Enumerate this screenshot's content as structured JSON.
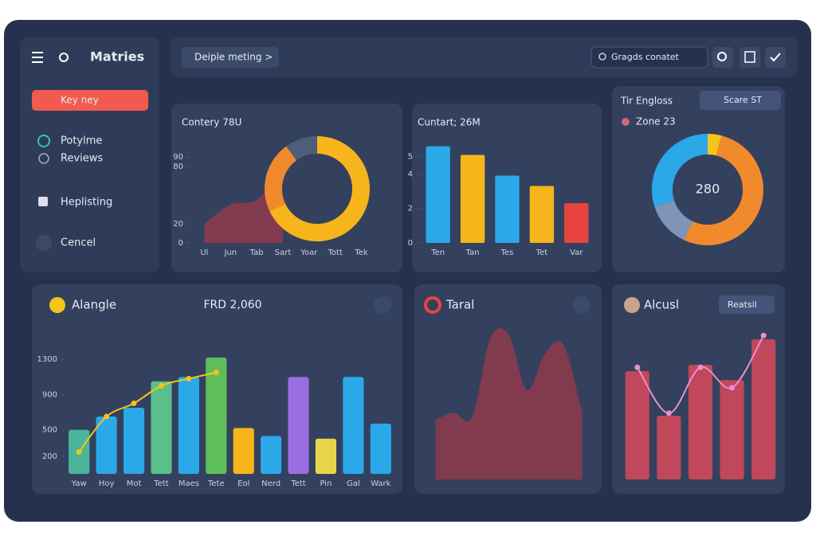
{
  "sidebar": {
    "title": "Matries",
    "button": "Key ney",
    "items": [
      "Potylme",
      "Reviews",
      "Heplisting",
      "Cencel"
    ]
  },
  "topbar": {
    "breadcrumb": "Deiple meting >",
    "search": "Gragds conatet"
  },
  "chart_data": [
    {
      "type": "area",
      "title": "Contery 78U",
      "categories": [
        "Ul",
        "Jun",
        "Tab",
        "Sart",
        "Yoar",
        "Tott",
        "Tek"
      ],
      "values": [
        20,
        40,
        45,
        75,
        null,
        null,
        null
      ],
      "color": "#8b3a4e",
      "ylim": [
        0,
        100
      ],
      "yticks": [
        0,
        20,
        80,
        90
      ]
    },
    {
      "type": "donut",
      "values": [
        68,
        22,
        10
      ],
      "colors": [
        "#f5b51b",
        "#f08a2c",
        "#4d5d7a"
      ]
    },
    {
      "type": "bar",
      "title": "Cuntart; 26M",
      "categories": [
        "Ten",
        "Tan",
        "Tes",
        "Tet",
        "Var"
      ],
      "values": [
        5.6,
        5.1,
        3.9,
        3.3,
        2.3
      ],
      "colors": [
        "#2ba8e8",
        "#f5b51b",
        "#2ba8e8",
        "#f5b51b",
        "#e8443f"
      ],
      "ylim": [
        0,
        6
      ],
      "yticks": [
        0,
        2,
        4,
        5
      ]
    },
    {
      "type": "donut",
      "title": "Tir Engloss",
      "button": "Scare ST",
      "legend": "Zone 23",
      "center_label": "280",
      "values": [
        4,
        53,
        13,
        30
      ],
      "colors": [
        "#f5c518",
        "#f08a2c",
        "#8094b8",
        "#2ba8e8"
      ]
    },
    {
      "type": "combo",
      "title": "Alangle",
      "subtitle": "FRD 2,060",
      "categories": [
        "Yaw",
        "Hoy",
        "Mot",
        "Tett",
        "Maes",
        "Tete",
        "Eol",
        "Nerd",
        "Tett",
        "Pin",
        "Gal",
        "Wark"
      ],
      "series": [
        {
          "type": "bar",
          "values": [
            500,
            650,
            750,
            1050,
            1100,
            1320,
            520,
            430,
            1100,
            400,
            1100,
            570
          ],
          "colors": [
            "#4ab59a",
            "#2ba8e8",
            "#2ba8e8",
            "#5bbf8a",
            "#2ba8e8",
            "#5fbf5a",
            "#f5b51b",
            "#2ba8e8",
            "#9b6ee0",
            "#e8d54a",
            "#2ba8e8",
            "#2ba8e8"
          ]
        },
        {
          "type": "line",
          "color": "#f5c518",
          "values": [
            250,
            650,
            800,
            1000,
            1080,
            1150,
            null,
            null,
            null,
            null,
            null,
            null
          ]
        }
      ],
      "ylim": [
        0,
        1400
      ],
      "yticks": [
        200,
        500,
        900,
        1300
      ]
    },
    {
      "type": "area",
      "title": "Taral",
      "values": [
        40,
        45,
        42,
        95,
        97,
        60,
        85,
        90,
        45
      ],
      "color": "#8b3a4e",
      "ylim": [
        0,
        100
      ]
    },
    {
      "type": "combo",
      "title": "Alcusl",
      "button": "Reatsil",
      "series": [
        {
          "type": "bar",
          "values": [
            850,
            500,
            900,
            780,
            1100
          ],
          "colors": [
            "#c0485a",
            "#c0485a",
            "#c0485a",
            "#c0485a",
            "#c0485a"
          ]
        },
        {
          "type": "line",
          "color": "#e88fd0",
          "values": [
            880,
            520,
            880,
            720,
            1130
          ]
        }
      ],
      "ylim": [
        0,
        1200
      ]
    }
  ]
}
